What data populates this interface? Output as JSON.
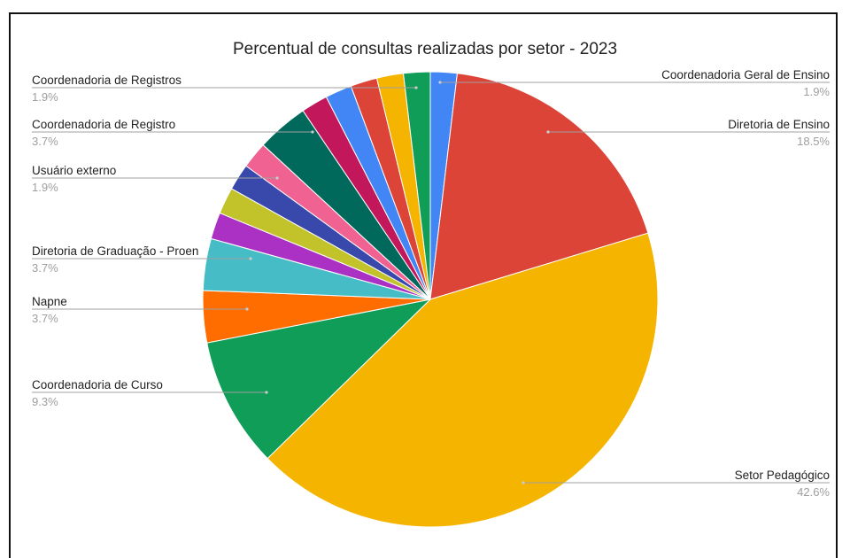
{
  "chart_data": {
    "type": "pie",
    "title": "Percentual de consultas realizadas por setor - 2023",
    "slices": [
      {
        "label": "Coordenadoria Geral de Ensino",
        "pct_label": "1.9%",
        "value": 1.9,
        "color": "#4285f4",
        "labeled": true
      },
      {
        "label": "Diretoria de Ensino",
        "pct_label": "18.5%",
        "value": 18.5,
        "color": "#db4437",
        "labeled": true
      },
      {
        "label": "Setor Pedagógico",
        "pct_label": "42.6%",
        "value": 42.6,
        "color": "#f4b400",
        "labeled": true
      },
      {
        "label": "Coordenadoria de Curso",
        "pct_label": "9.3%",
        "value": 9.3,
        "color": "#0f9d58",
        "labeled": true
      },
      {
        "label": "Napne",
        "pct_label": "3.7%",
        "value": 3.7,
        "color": "#ff6d01",
        "labeled": true
      },
      {
        "label": "Diretoria de Graduação - Proen",
        "pct_label": "3.7%",
        "value": 3.7,
        "color": "#46bdc6",
        "labeled": true
      },
      {
        "label": "",
        "pct_label": "",
        "value": 1.9,
        "color": "#ab30c4",
        "labeled": false
      },
      {
        "label": "",
        "pct_label": "",
        "value": 1.9,
        "color": "#c2c22a",
        "labeled": false
      },
      {
        "label": "Usuário externo",
        "pct_label": "1.9%",
        "value": 1.9,
        "color": "#3949ab",
        "labeled": true
      },
      {
        "label": "",
        "pct_label": "",
        "value": 1.9,
        "color": "#f06292",
        "labeled": false
      },
      {
        "label": "Coordenadoria de Registro",
        "pct_label": "3.7%",
        "value": 3.7,
        "color": "#00695c",
        "labeled": true
      },
      {
        "label": "",
        "pct_label": "",
        "value": 1.9,
        "color": "#c2185b",
        "labeled": false
      },
      {
        "label": "Coordenadoria de Registros",
        "pct_label": "1.9%",
        "value": 1.9,
        "color": "#4285f4",
        "labeled": true
      },
      {
        "label": "",
        "pct_label": "",
        "value": 1.9,
        "color": "#db4437",
        "labeled": false
      },
      {
        "label": "",
        "pct_label": "",
        "value": 1.9,
        "color": "#f4b400",
        "labeled": false
      },
      {
        "label": "",
        "pct_label": "",
        "value": 1.9,
        "color": "#0f9d58",
        "labeled": false
      }
    ]
  }
}
